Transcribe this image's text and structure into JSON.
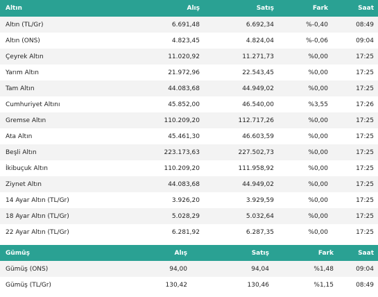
{
  "gold": {
    "headers": {
      "name": "Altın",
      "alis": "Alış",
      "satis": "Satış",
      "fark": "Fark",
      "saat": "Saat"
    },
    "rows": [
      {
        "name": "Altın (TL/Gr)",
        "alis": "6.691,48",
        "satis": "6.692,34",
        "fark": "%-0,40",
        "saat": "08:49"
      },
      {
        "name": "Altın (ONS)",
        "alis": "4.823,45",
        "satis": "4.824,04",
        "fark": "%-0,06",
        "saat": "09:04"
      },
      {
        "name": "Çeyrek Altın",
        "alis": "11.020,92",
        "satis": "11.271,73",
        "fark": "%0,00",
        "saat": "17:25"
      },
      {
        "name": "Yarım Altın",
        "alis": "21.972,96",
        "satis": "22.543,45",
        "fark": "%0,00",
        "saat": "17:25"
      },
      {
        "name": "Tam Altın",
        "alis": "44.083,68",
        "satis": "44.949,02",
        "fark": "%0,00",
        "saat": "17:25"
      },
      {
        "name": "Cumhuriyet Altını",
        "alis": "45.852,00",
        "satis": "46.540,00",
        "fark": "%3,55",
        "saat": "17:26"
      },
      {
        "name": "Gremse Altın",
        "alis": "110.209,20",
        "satis": "112.717,26",
        "fark": "%0,00",
        "saat": "17:25"
      },
      {
        "name": "Ata Altın",
        "alis": "45.461,30",
        "satis": "46.603,59",
        "fark": "%0,00",
        "saat": "17:25"
      },
      {
        "name": "Beşli Altın",
        "alis": "223.173,63",
        "satis": "227.502,73",
        "fark": "%0,00",
        "saat": "17:25"
      },
      {
        "name": "İkibuçuk Altın",
        "alis": "110.209,20",
        "satis": "111.958,92",
        "fark": "%0,00",
        "saat": "17:25"
      },
      {
        "name": "Ziynet Altın",
        "alis": "44.083,68",
        "satis": "44.949,02",
        "fark": "%0,00",
        "saat": "17:25"
      },
      {
        "name": "14 Ayar Altın (TL/Gr)",
        "alis": "3.926,20",
        "satis": "3.929,59",
        "fark": "%0,00",
        "saat": "17:25"
      },
      {
        "name": "18 Ayar Altın (TL/Gr)",
        "alis": "5.028,29",
        "satis": "5.032,64",
        "fark": "%0,00",
        "saat": "17:25"
      },
      {
        "name": "22 Ayar Altın (TL/Gr)",
        "alis": "6.281,92",
        "satis": "6.287,35",
        "fark": "%0,00",
        "saat": "17:25"
      }
    ]
  },
  "silver": {
    "headers": {
      "name": "Gümüş",
      "alis": "Alış",
      "satis": "Satış",
      "fark": "Fark",
      "saat": "Saat"
    },
    "rows": [
      {
        "name": "Gümüş (ONS)",
        "alis": "94,00",
        "satis": "94,04",
        "fark": "%1,48",
        "saat": "09:04"
      },
      {
        "name": "Gümüş (TL/Gr)",
        "alis": "130,42",
        "satis": "130,46",
        "fark": "%1,15",
        "saat": "08:49"
      }
    ]
  },
  "colors": {
    "header_bg": "#2aa193",
    "header_text": "#ffffff",
    "row_stripe": "#f3f3f3"
  }
}
